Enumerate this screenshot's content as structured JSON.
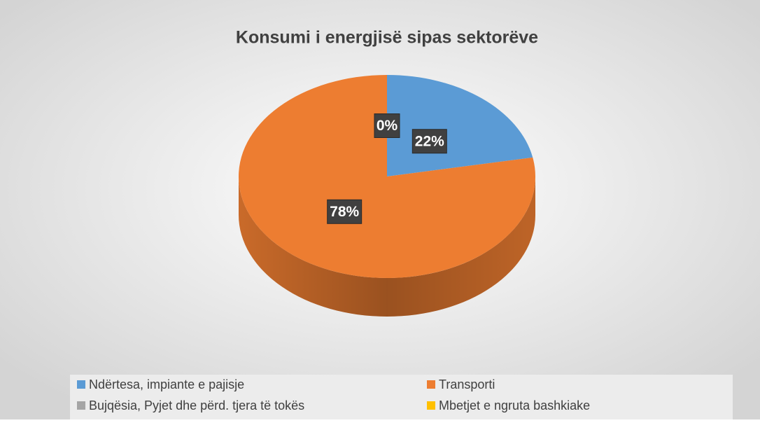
{
  "chart_data": {
    "type": "pie",
    "title": "Konsumi i energjisë sipas sektorëve",
    "categories": [
      "Ndërtesa, impiante e pajisje",
      "Transporti",
      "Bujqësia, Pyjet dhe përd. tjera të tokës",
      "Mbetjet e ngruta bashkiake"
    ],
    "values": [
      22,
      78,
      0,
      0
    ],
    "value_labels": [
      "22%",
      "78%",
      "0%",
      null
    ],
    "colors": [
      "#5b9bd5",
      "#ed7d31",
      "#a5a5a5",
      "#ffc000"
    ],
    "legend": "bottom"
  }
}
